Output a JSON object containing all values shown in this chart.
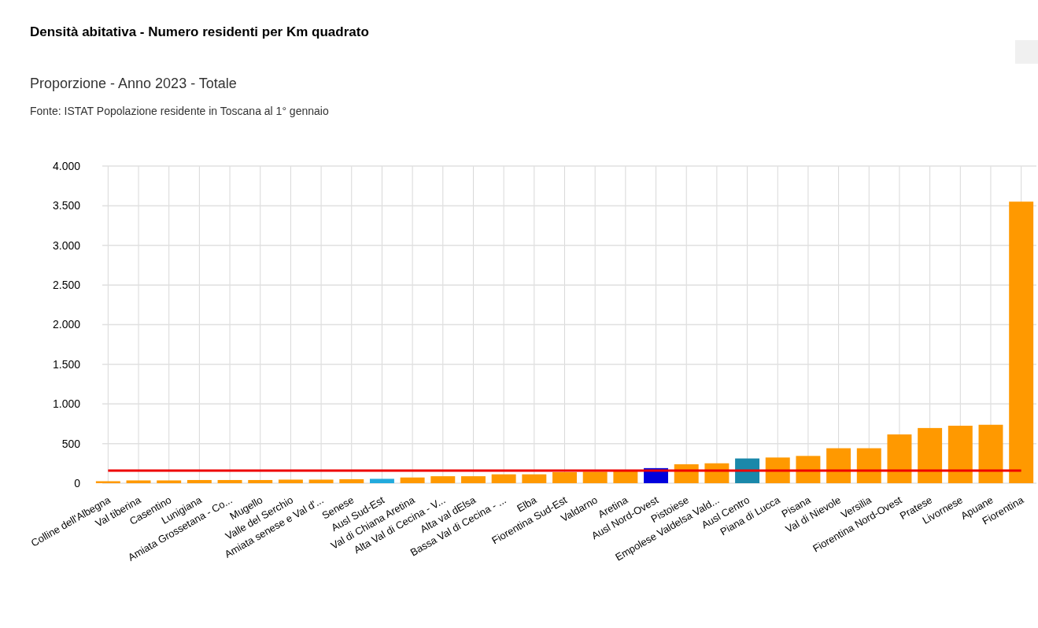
{
  "chart_data": {
    "type": "bar",
    "title": "Densità abitativa - Numero residenti per Km quadrato",
    "subtitle": "Proporzione - Anno 2023 - Totale",
    "annotations": [
      "Fonte: ISTAT Popolazione residente in Toscana al 1° gennaio"
    ],
    "categories": [
      "Colline dell'Albegna",
      "Val tiberina",
      "Casentino",
      "Lunigiana",
      "Amiata Grossetana - Co...",
      "Mugello",
      "Valle del Serchio",
      "Amiata senese e Val d'...",
      "Senese",
      "Ausl Sud-Est",
      "Val di Chiana Aretina",
      "Alta Val di Cecina - V...",
      "Alta val dElsa",
      "Bassa Val di Cecina - ...",
      "Elba",
      "Fiorentina Sud-Est",
      "Valdarno",
      "Aretina",
      "Ausl Nord-Ovest",
      "Pistoiese",
      "Empolese Valdelsa Vald...",
      "Ausl Centro",
      "Piana di Lucca",
      "Pisana",
      "Val di Nievole",
      "Versilia",
      "Fiorentina Nord-Ovest",
      "Pratese",
      "Livornese",
      "Apuane",
      "Fiorentina"
    ],
    "values": [
      25,
      35,
      35,
      40,
      40,
      40,
      45,
      45,
      50,
      55,
      72,
      88,
      88,
      112,
      112,
      140,
      145,
      150,
      190,
      239,
      251,
      312,
      324,
      344,
      441,
      441,
      615,
      696,
      725,
      737,
      3551
    ],
    "colors": [
      "#ff9900",
      "#ff9900",
      "#ff9900",
      "#ff9900",
      "#ff9900",
      "#ff9900",
      "#ff9900",
      "#ff9900",
      "#ff9900",
      "#22aadd",
      "#ff9900",
      "#ff9900",
      "#ff9900",
      "#ff9900",
      "#ff9900",
      "#ff9900",
      "#ff9900",
      "#ff9900",
      "#0000dd",
      "#ff9900",
      "#ff9900",
      "#1a88aa",
      "#ff9900",
      "#ff9900",
      "#ff9900",
      "#ff9900",
      "#ff9900",
      "#ff9900",
      "#ff9900",
      "#ff9900",
      "#ff9900"
    ],
    "ylim": [
      0,
      4000
    ],
    "yticks": [
      0,
      500,
      {
        "value": 1000,
        "label": "1.000"
      },
      {
        "value": 1500,
        "label": "1.500"
      },
      {
        "value": 2000,
        "label": "2.000"
      },
      {
        "value": 2500,
        "label": "2.500"
      },
      {
        "value": 3000,
        "label": "3.000"
      },
      {
        "value": 3500,
        "label": "3.500"
      },
      {
        "value": 4000,
        "label": "4.000"
      }
    ],
    "grid": true,
    "ref_lines": [
      {
        "axis": "y",
        "value": 160,
        "color": "#ee0000"
      }
    ]
  }
}
